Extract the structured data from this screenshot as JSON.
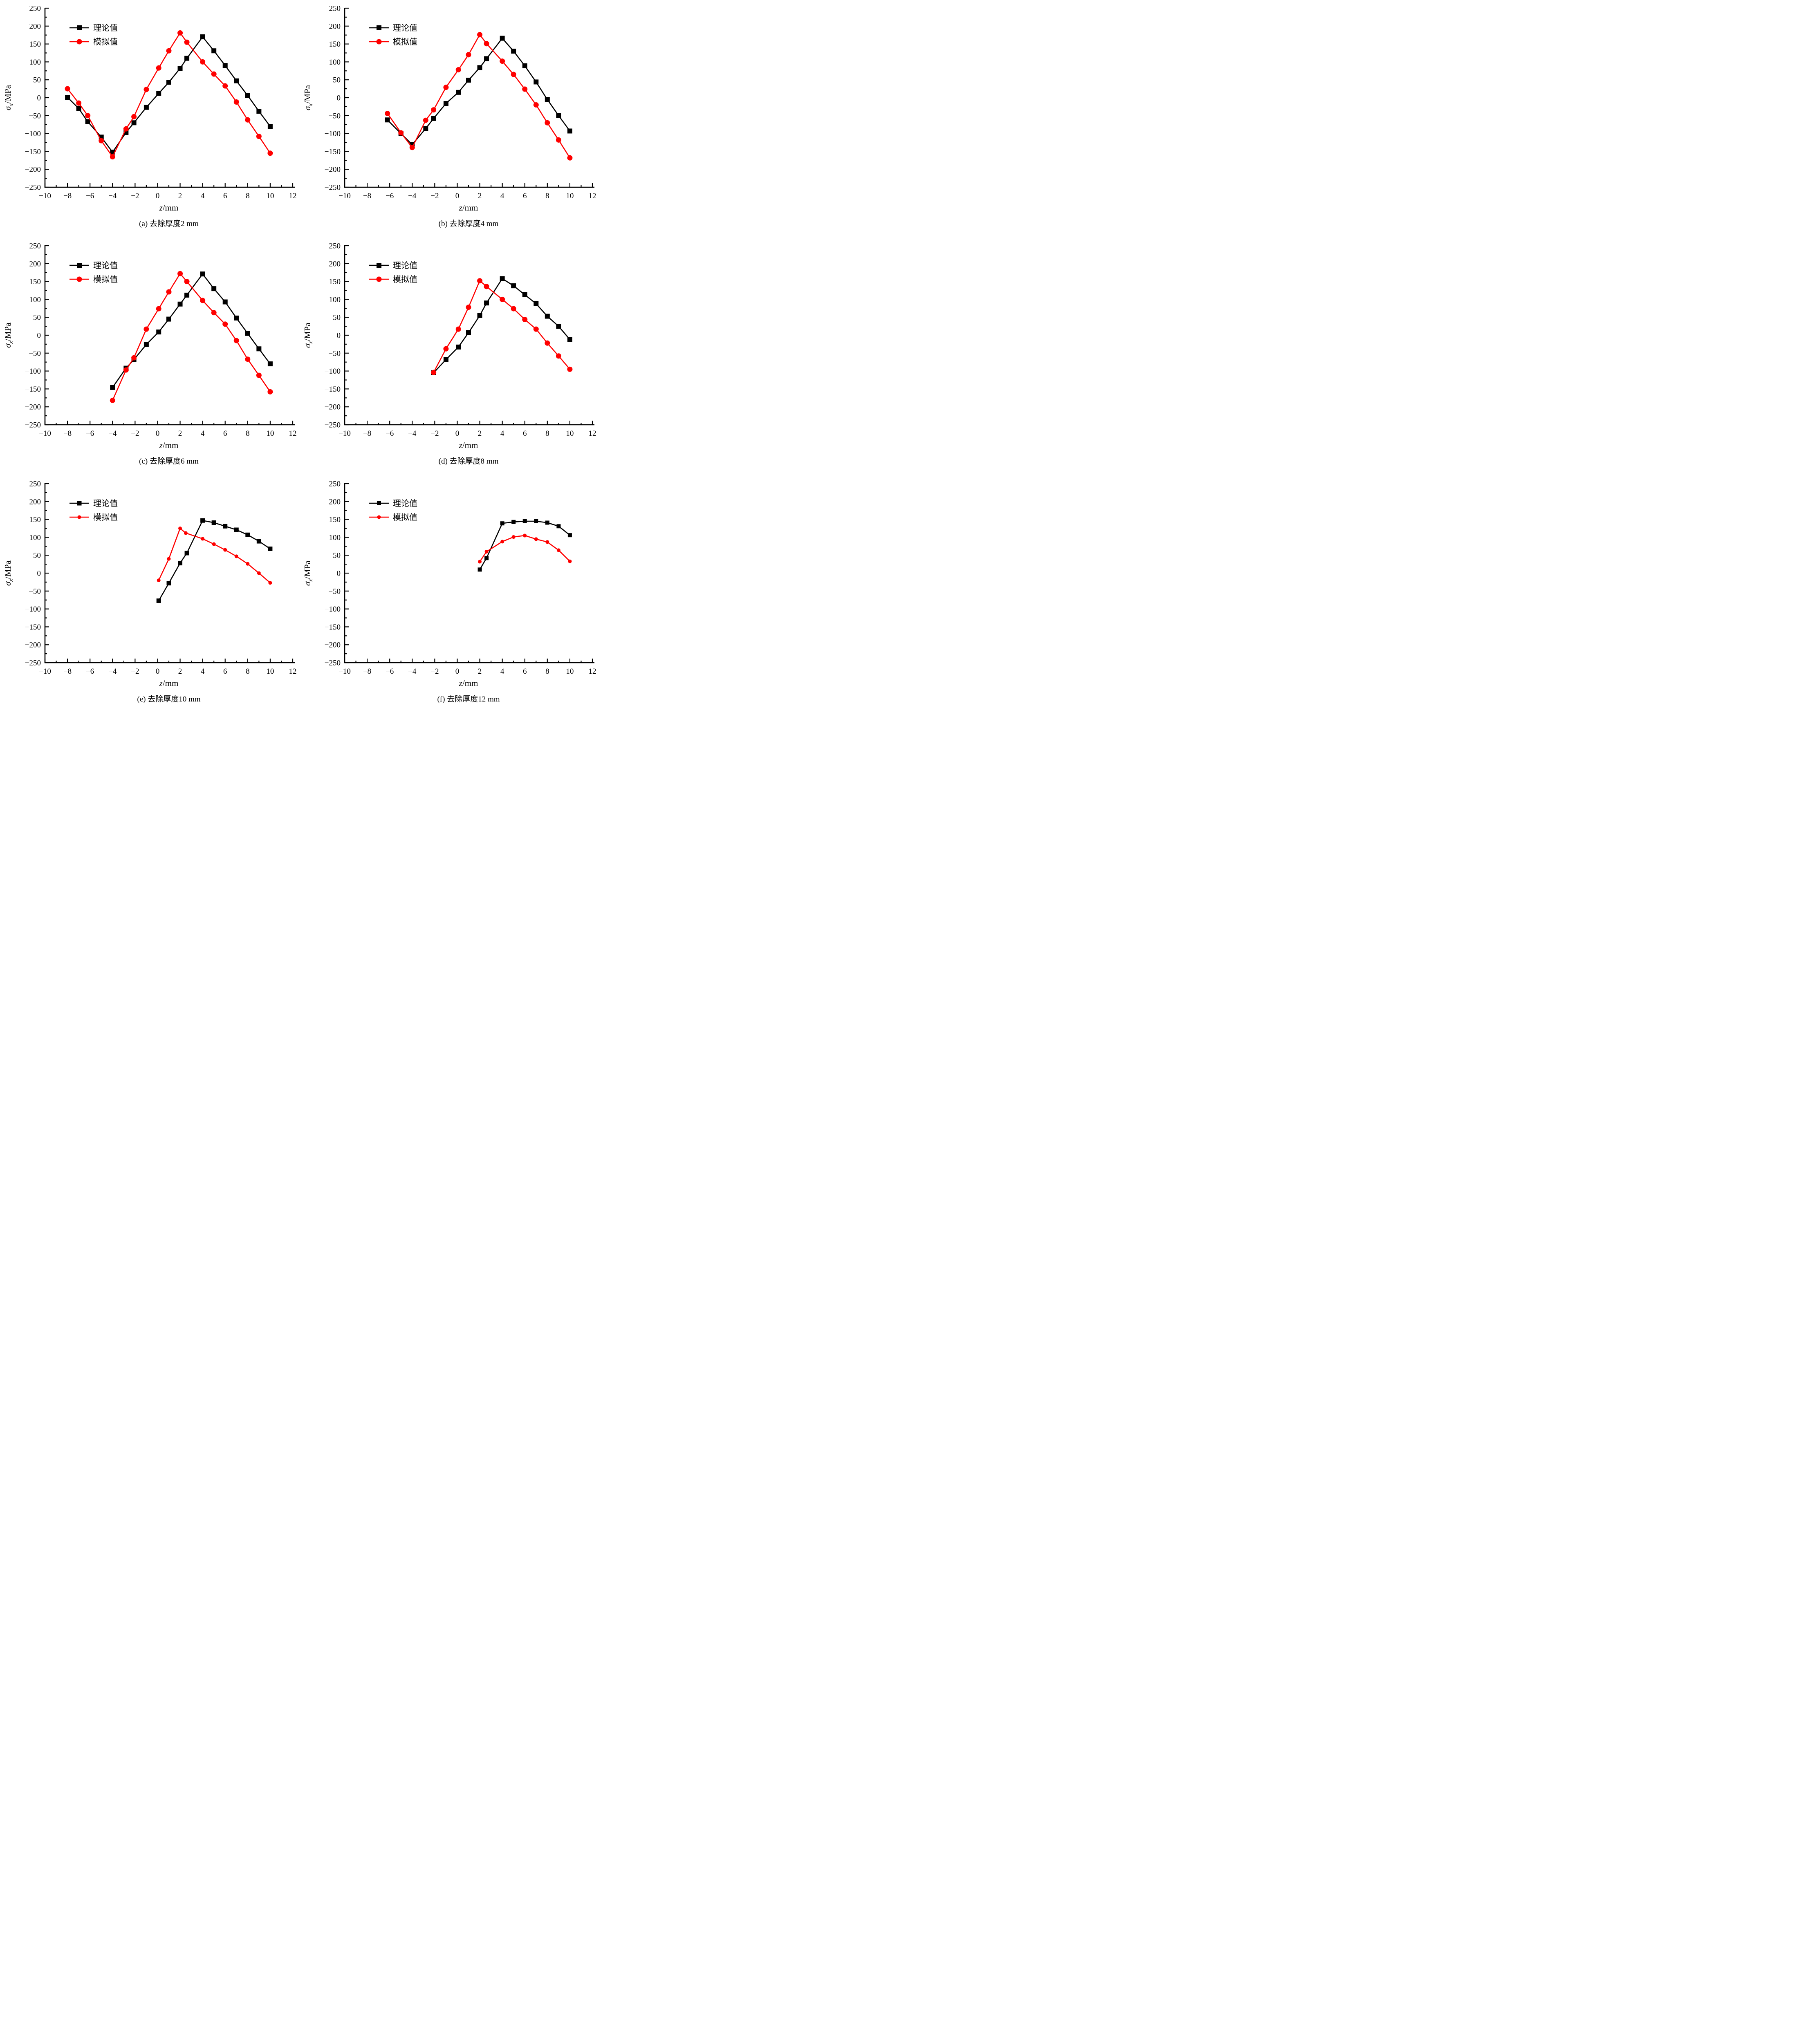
{
  "figure": {
    "background": "#ffffff",
    "series_colors": {
      "theory": "#000000",
      "simulation": "#ff0000"
    },
    "legend_labels": [
      "理论值",
      "模拟值"
    ]
  },
  "chart_data": [
    {
      "id": "a",
      "type": "line",
      "caption": "(a) 去除厚度2 mm",
      "xlabel": {
        "var": "z",
        "unit": "mm"
      },
      "ylabel": {
        "var": "σ",
        "sub": "x",
        "unit": "MPa"
      },
      "xlim": [
        -10,
        12
      ],
      "ylim": [
        -250,
        250
      ],
      "xtick_major": 2,
      "xtick_minor": 1,
      "ytick_major": 50,
      "ytick_minor": 25,
      "grid": false,
      "legend_position": "upper-left",
      "series": [
        {
          "name": "理论值",
          "color": "#000000",
          "marker": "square",
          "marker_size": 12,
          "x": [
            -8,
            -7,
            -6.2,
            -5,
            -4,
            -2.8,
            -2.1,
            -1,
            0.1,
            1,
            2,
            2.6,
            4,
            5,
            6,
            7,
            8,
            9,
            10
          ],
          "y": [
            1,
            -30,
            -67,
            -110,
            -152,
            -97,
            -70,
            -27,
            12,
            43,
            82,
            110,
            170,
            131,
            90,
            47,
            6,
            -38,
            -80
          ]
        },
        {
          "name": "模拟值",
          "color": "#ff0000",
          "marker": "circle",
          "marker_size": 13,
          "x": [
            -8,
            -7,
            -6.2,
            -5,
            -4,
            -2.8,
            -2.1,
            -1,
            0.1,
            1,
            2,
            2.6,
            4,
            5,
            6,
            7,
            8,
            9,
            10
          ],
          "y": [
            25,
            -15,
            -50,
            -120,
            -165,
            -87,
            -53,
            23,
            83,
            131,
            181,
            155,
            100,
            66,
            33,
            -12,
            -62,
            -108,
            -155
          ]
        }
      ]
    },
    {
      "id": "b",
      "type": "line",
      "caption": "(b) 去除厚度4 mm",
      "xlabel": {
        "var": "z",
        "unit": "mm"
      },
      "ylabel": {
        "var": "σ",
        "sub": "x",
        "unit": "MPa"
      },
      "xlim": [
        -10,
        12
      ],
      "ylim": [
        -250,
        250
      ],
      "xtick_major": 2,
      "xtick_minor": 1,
      "ytick_major": 50,
      "ytick_minor": 25,
      "grid": false,
      "legend_position": "upper-left",
      "series": [
        {
          "name": "理论值",
          "color": "#000000",
          "marker": "square",
          "marker_size": 12,
          "x": [
            -6.2,
            -5,
            -4,
            -2.8,
            -2.1,
            -1,
            0.1,
            1,
            2,
            2.6,
            4,
            5,
            6,
            7,
            8,
            9,
            10
          ],
          "y": [
            -62,
            -100,
            -131,
            -86,
            -58,
            -16,
            15,
            49,
            84,
            109,
            166,
            130,
            89,
            44,
            -5,
            -50,
            -93
          ]
        },
        {
          "name": "模拟值",
          "color": "#ff0000",
          "marker": "circle",
          "marker_size": 13,
          "x": [
            -6.2,
            -5,
            -4,
            -2.8,
            -2.1,
            -1,
            0.1,
            1,
            2,
            2.6,
            4,
            5,
            6,
            7,
            8,
            9,
            10
          ],
          "y": [
            -44,
            -98,
            -139,
            -63,
            -34,
            29,
            78,
            120,
            176,
            151,
            102,
            65,
            24,
            -20,
            -70,
            -118,
            -168
          ]
        }
      ]
    },
    {
      "id": "c",
      "type": "line",
      "caption": "(c) 去除厚度6 mm",
      "xlabel": {
        "var": "z",
        "unit": "mm"
      },
      "ylabel": {
        "var": "σ",
        "sub": "x",
        "unit": "MPa"
      },
      "xlim": [
        -10,
        12
      ],
      "ylim": [
        -250,
        250
      ],
      "xtick_major": 2,
      "xtick_minor": 1,
      "ytick_major": 50,
      "ytick_minor": 25,
      "grid": false,
      "legend_position": "upper-left",
      "series": [
        {
          "name": "理论值",
          "color": "#000000",
          "marker": "square",
          "marker_size": 12,
          "x": [
            -4,
            -2.8,
            -2.1,
            -1,
            0.1,
            1,
            2,
            2.6,
            4,
            5,
            6,
            7,
            8,
            9,
            10
          ],
          "y": [
            -146,
            -92,
            -68,
            -26,
            9,
            45,
            87,
            112,
            171,
            130,
            93,
            48,
            5,
            -38,
            -80
          ]
        },
        {
          "name": "模拟值",
          "color": "#ff0000",
          "marker": "circle",
          "marker_size": 13,
          "x": [
            -4,
            -2.8,
            -2.1,
            -1,
            0.1,
            1,
            2,
            2.6,
            4,
            5,
            6,
            7,
            8,
            9,
            10
          ],
          "y": [
            -182,
            -97,
            -63,
            17,
            74,
            121,
            172,
            150,
            97,
            63,
            31,
            -15,
            -67,
            -112,
            -158
          ]
        }
      ]
    },
    {
      "id": "d",
      "type": "line",
      "caption": "(d) 去除厚度8 mm",
      "xlabel": {
        "var": "z",
        "unit": "mm"
      },
      "ylabel": {
        "var": "σ",
        "sub": "x",
        "unit": "MPa"
      },
      "xlim": [
        -10,
        12
      ],
      "ylim": [
        -250,
        250
      ],
      "xtick_major": 2,
      "xtick_minor": 1,
      "ytick_major": 50,
      "ytick_minor": 25,
      "grid": false,
      "legend_position": "upper-left",
      "series": [
        {
          "name": "理论值",
          "color": "#000000",
          "marker": "square",
          "marker_size": 12,
          "x": [
            -2.1,
            -1,
            0.1,
            1,
            2,
            2.6,
            4,
            5,
            6,
            7,
            8,
            9,
            10
          ],
          "y": [
            -105,
            -68,
            -33,
            7,
            55,
            90,
            158,
            138,
            113,
            88,
            53,
            25,
            -12
          ]
        },
        {
          "name": "模拟值",
          "color": "#ff0000",
          "marker": "circle",
          "marker_size": 13,
          "x": [
            -2.1,
            -1,
            0.1,
            1,
            2,
            2.6,
            4,
            5,
            6,
            7,
            8,
            9,
            10
          ],
          "y": [
            -104,
            -38,
            17,
            78,
            152,
            136,
            100,
            74,
            44,
            17,
            -22,
            -58,
            -95
          ]
        }
      ]
    },
    {
      "id": "e",
      "type": "line",
      "caption": "(e) 去除厚度10 mm",
      "xlabel": {
        "var": "z",
        "unit": "mm"
      },
      "ylabel": {
        "var": "σ",
        "sub": "x",
        "unit": "MPa"
      },
      "xlim": [
        -10,
        12
      ],
      "ylim": [
        -250,
        250
      ],
      "xtick_major": 2,
      "xtick_minor": 1,
      "ytick_major": 50,
      "ytick_minor": 25,
      "grid": false,
      "legend_position": "upper-left",
      "series": [
        {
          "name": "理论值",
          "color": "#000000",
          "marker": "square",
          "marker_size": 11,
          "x": [
            0.1,
            1,
            2,
            2.6,
            4,
            5,
            6,
            7,
            8,
            9,
            10
          ],
          "y": [
            -77,
            -28,
            28,
            56,
            147,
            141,
            131,
            121,
            107,
            89,
            68
          ]
        },
        {
          "name": "模拟值",
          "color": "#ff0000",
          "marker": "circle",
          "marker_size": 9,
          "x": [
            0.1,
            1,
            2,
            2.5,
            4,
            5,
            6,
            7,
            8,
            9,
            10
          ],
          "y": [
            -20,
            40,
            125,
            112,
            96,
            81,
            65,
            47,
            26,
            0,
            -27
          ]
        }
      ]
    },
    {
      "id": "f",
      "type": "line",
      "caption": "(f) 去除厚度12 mm",
      "xlabel": {
        "var": "z",
        "unit": "mm"
      },
      "ylabel": {
        "var": "σ",
        "sub": "x",
        "unit": "MPa"
      },
      "xlim": [
        -10,
        12
      ],
      "ylim": [
        -250,
        250
      ],
      "xtick_major": 2,
      "xtick_minor": 1,
      "ytick_major": 50,
      "ytick_minor": 25,
      "grid": false,
      "legend_position": "upper-left",
      "series": [
        {
          "name": "理论值",
          "color": "#000000",
          "marker": "square",
          "marker_size": 10,
          "x": [
            2,
            2.6,
            4,
            5,
            6,
            7,
            8,
            9,
            10
          ],
          "y": [
            10,
            42,
            139,
            143,
            145,
            145,
            141,
            131,
            106
          ]
        },
        {
          "name": "模拟值",
          "color": "#ff0000",
          "marker": "circle",
          "marker_size": 9,
          "x": [
            2,
            2.6,
            4,
            5,
            6,
            7,
            8,
            9,
            10
          ],
          "y": [
            32,
            60,
            88,
            101,
            105,
            95,
            87,
            64,
            33
          ]
        }
      ]
    }
  ]
}
